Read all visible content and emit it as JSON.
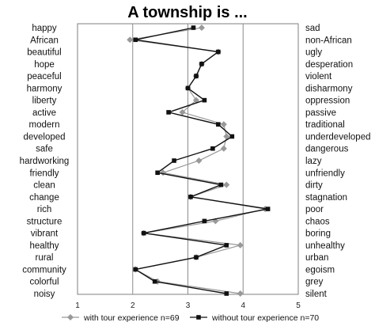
{
  "chart_data": {
    "type": "line",
    "title": "A township is ...",
    "categories_left": [
      "happy",
      "African",
      "beautiful",
      "hope",
      "peaceful",
      "harmony",
      "liberty",
      "active",
      "modern",
      "developed",
      "safe",
      "hardworking",
      "friendly",
      "clean",
      "change",
      "rich",
      "structure",
      "vibrant",
      "healthy",
      "rural",
      "community",
      "colorful",
      "noisy"
    ],
    "categories_right": [
      "sad",
      "non-African",
      "ugly",
      "desperation",
      "violent",
      "disharmony",
      "oppression",
      "passive",
      "traditional",
      "underdeveloped",
      "dangerous",
      "lazy",
      "unfriendly",
      "dirty",
      "stagnation",
      "poor",
      "chaos",
      "boring",
      "unhealthy",
      "urban",
      "egoism",
      "grey",
      "silent"
    ],
    "xlim": [
      1,
      5
    ],
    "xticks": [
      1,
      2,
      3,
      4,
      5
    ],
    "tick_labels": [
      "1",
      "2",
      "3",
      "4",
      "5"
    ],
    "grid": "vertical",
    "legend_position": "bottom",
    "series": [
      {
        "name": "with tour experience n=69",
        "color": "#999999",
        "marker": "diamond",
        "values": [
          3.25,
          1.95,
          3.55,
          3.25,
          3.15,
          3.0,
          3.15,
          2.9,
          3.65,
          3.7,
          3.65,
          3.2,
          2.55,
          3.7,
          3.05,
          4.4,
          3.5,
          2.2,
          3.95,
          3.15,
          2.05,
          2.45,
          3.95
        ]
      },
      {
        "name": "without tour experience n=70",
        "color": "#111111",
        "marker": "square",
        "values": [
          3.1,
          2.05,
          3.55,
          3.25,
          3.15,
          3.0,
          3.3,
          2.65,
          3.55,
          3.8,
          3.45,
          2.75,
          2.45,
          3.6,
          3.05,
          4.45,
          3.3,
          2.2,
          3.7,
          3.15,
          2.05,
          2.4,
          3.7
        ]
      }
    ]
  }
}
